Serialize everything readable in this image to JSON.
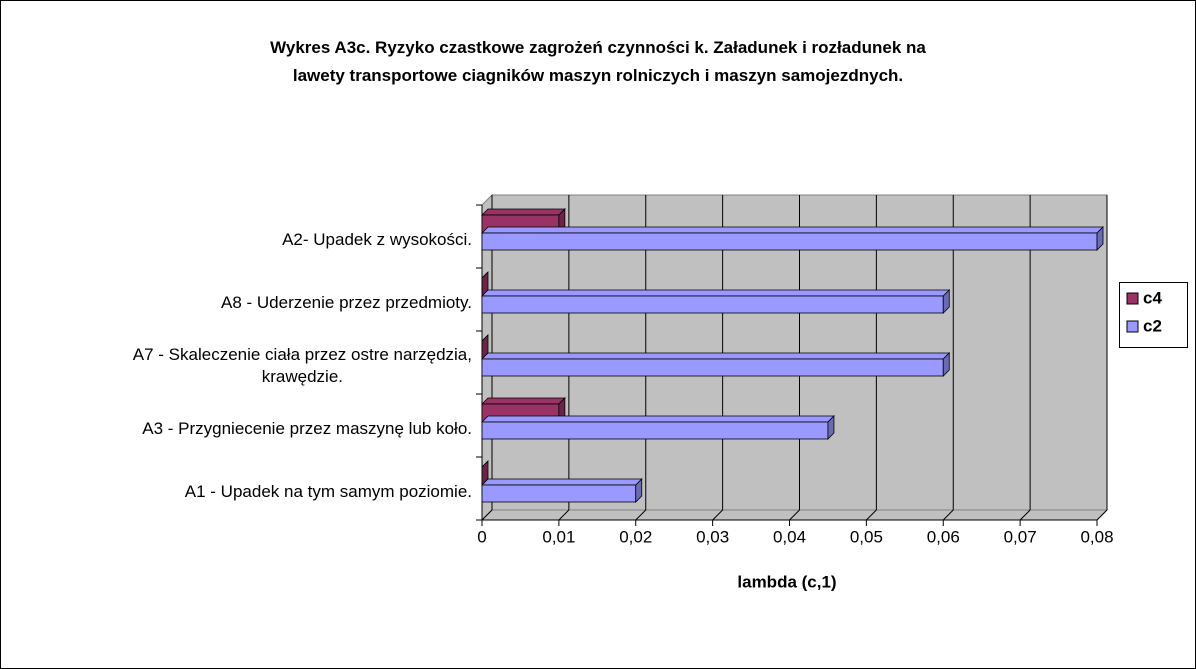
{
  "chart_data": {
    "type": "bar3d_horizontal",
    "title": "Wykres A3c. Ryzyko czastkowe zagrożeń czynności k. Załadunek i rozładunek na\nlawety transportowe ciagników maszyn rolniczych i maszyn samojezdnych.",
    "x_label": "lambda (c,1)",
    "categories": [
      "A2- Upadek z wysokości.",
      "A8 - Uderzenie przez przedmioty.",
      "A7 - Skaleczenie ciała przez ostre narzędzia,\nkrawędzie.",
      "A3 - Przygniecenie przez maszynę lub koło.",
      "A1 - Upadek na tym samym poziomie."
    ],
    "series": [
      {
        "name": "c4",
        "color": "#993366",
        "values": [
          0.01,
          0,
          0,
          0.01,
          0
        ]
      },
      {
        "name": "c2",
        "color": "#9999ff",
        "values": [
          0.08,
          0.06,
          0.06,
          0.045,
          0.02
        ]
      }
    ],
    "xlim": [
      0,
      0.08
    ],
    "xticks": [
      0,
      {
        "value": 0.01,
        "label": "0,01"
      },
      {
        "value": 0.02,
        "label": "0,02"
      },
      {
        "value": 0.03,
        "label": "0,03"
      },
      {
        "value": 0.04,
        "label": "0,04"
      },
      {
        "value": 0.05,
        "label": "0,05"
      },
      {
        "value": 0.06,
        "label": "0,06"
      },
      {
        "value": 0.07,
        "label": "0,07"
      },
      {
        "value": 0.08,
        "label": "0,08"
      }
    ],
    "grid": true,
    "legend": "right"
  }
}
